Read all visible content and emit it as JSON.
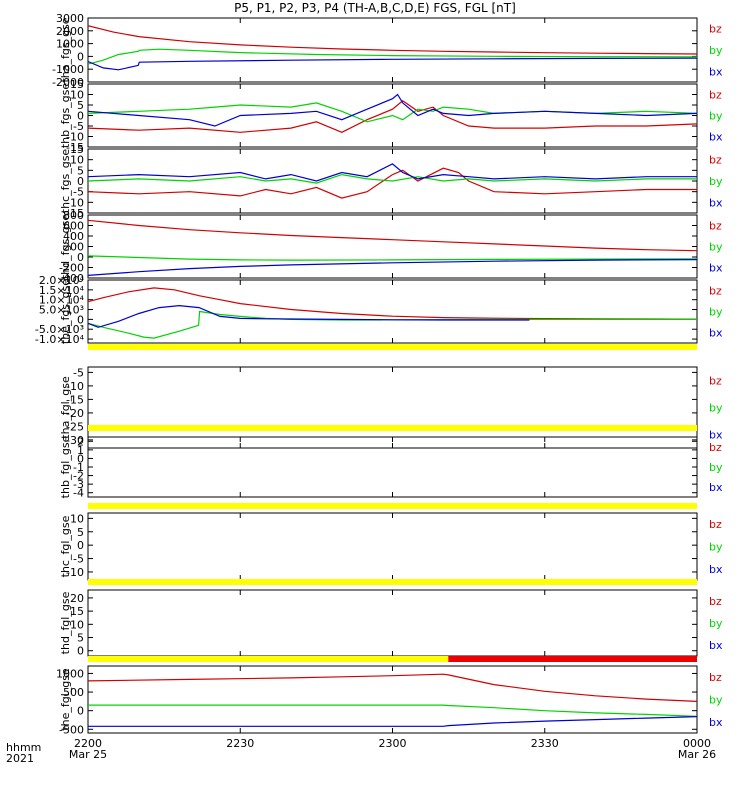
{
  "title": "P5, P1, P2, P3, P4 (TH-A,B,C,D,E) FGS, FGL [nT]",
  "time_axis": {
    "ticks": [
      {
        "label": "2200",
        "sublabel": "Mar 25",
        "minute": 0
      },
      {
        "label": "2230",
        "sublabel": "",
        "minute": 30
      },
      {
        "label": "2300",
        "sublabel": "",
        "minute": 60
      },
      {
        "label": "2330",
        "sublabel": "",
        "minute": 90
      },
      {
        "label": "0000",
        "sublabel": "Mar 26",
        "minute": 120
      }
    ],
    "left_label_1": "hhmm",
    "left_label_2": "2021"
  },
  "colors": {
    "bz": "#d40000",
    "by": "#00d400",
    "bx": "#0000d4",
    "flag_yellow": "#ffff00",
    "flag_red": "#ee0000"
  },
  "chart_data": [
    {
      "type": "line",
      "ylabel": "tha_fgs_gse",
      "ylim": [
        -2000,
        3000
      ],
      "yticks": [
        {
          "v": 3000,
          "label": "3000"
        },
        {
          "v": 2000,
          "label": "2000"
        },
        {
          "v": 1000,
          "label": "1000"
        },
        {
          "v": 0,
          "label": "0"
        },
        {
          "v": -1000,
          "label": "-1000"
        },
        {
          "v": -2000,
          "label": "-2000"
        }
      ],
      "legend": [
        "bz",
        "by",
        "bx"
      ],
      "series": [
        {
          "name": "bz",
          "x": [
            0,
            5,
            10,
            20,
            30,
            40,
            50,
            60,
            70,
            80,
            90,
            100,
            110,
            120
          ],
          "y": [
            2400,
            1900,
            1550,
            1150,
            900,
            720,
            580,
            480,
            400,
            340,
            290,
            250,
            220,
            190
          ]
        },
        {
          "name": "by",
          "x": [
            0,
            3,
            6,
            9.9,
            10.1,
            14,
            20,
            30,
            45,
            60,
            80,
            100,
            120
          ],
          "y": [
            -600,
            -300,
            150,
            400,
            480,
            560,
            480,
            300,
            150,
            60,
            10,
            -20,
            -40
          ]
        },
        {
          "name": "bx",
          "x": [
            0,
            3,
            6,
            9.9,
            10.1,
            20,
            40,
            60,
            80,
            100,
            120
          ],
          "y": [
            -400,
            -900,
            -1050,
            -700,
            -450,
            -380,
            -300,
            -230,
            -190,
            -160,
            -140
          ]
        }
      ]
    },
    {
      "type": "line",
      "ylabel": "thb_fgs_gse",
      "ylim": [
        -15,
        15
      ],
      "yticks": [
        {
          "v": 15,
          "label": "15"
        },
        {
          "v": 10,
          "label": "10"
        },
        {
          "v": 5,
          "label": "5"
        },
        {
          "v": 0,
          "label": "0"
        },
        {
          "v": -5,
          "label": "-5"
        },
        {
          "v": -10,
          "label": "-10"
        },
        {
          "v": -15,
          "label": "-15"
        }
      ],
      "legend": [
        "bz",
        "by",
        "bx"
      ],
      "series": [
        {
          "name": "bz",
          "x": [
            0,
            10,
            20,
            30,
            40,
            45,
            50,
            55,
            60,
            62,
            65,
            68,
            70,
            75,
            80,
            90,
            100,
            110,
            120
          ],
          "y": [
            -6,
            -7,
            -6,
            -8,
            -6,
            -3,
            -8,
            -2,
            3,
            7,
            2,
            4,
            0,
            -5,
            -6,
            -6,
            -5,
            -5,
            -4
          ]
        },
        {
          "name": "by",
          "x": [
            0,
            10,
            20,
            25,
            30,
            40,
            45,
            50,
            55,
            60,
            62,
            65,
            68,
            70,
            75,
            80,
            90,
            100,
            110,
            120
          ],
          "y": [
            1,
            2,
            3,
            4,
            5,
            4,
            6,
            2,
            -3,
            0,
            -2,
            3,
            2,
            4,
            3,
            1,
            2,
            1,
            2,
            1
          ]
        },
        {
          "name": "bx",
          "x": [
            0,
            10,
            20,
            25,
            30,
            40,
            45,
            50,
            55,
            60,
            61,
            62,
            65,
            68,
            70,
            75,
            80,
            90,
            100,
            110,
            120
          ],
          "y": [
            2,
            0,
            -2,
            -5,
            0,
            1,
            2,
            -2,
            3,
            8,
            10,
            6,
            0,
            3,
            1,
            0,
            1,
            2,
            1,
            0,
            1
          ]
        }
      ]
    },
    {
      "type": "line",
      "ylabel": "thc_fgs_gse",
      "ylim": [
        -15,
        15
      ],
      "yticks": [
        {
          "v": 15,
          "label": "15"
        },
        {
          "v": 10,
          "label": "10"
        },
        {
          "v": 5,
          "label": "5"
        },
        {
          "v": 0,
          "label": "0"
        },
        {
          "v": -5,
          "label": "-5"
        },
        {
          "v": -10,
          "label": "-10"
        },
        {
          "v": -15,
          "label": "-15"
        }
      ],
      "legend": [
        "bz",
        "by",
        "bx"
      ],
      "series": [
        {
          "name": "bz",
          "x": [
            0,
            10,
            20,
            30,
            35,
            40,
            45,
            50,
            55,
            60,
            62,
            65,
            70,
            73,
            75,
            80,
            90,
            100,
            110,
            120
          ],
          "y": [
            -5,
            -6,
            -5,
            -7,
            -4,
            -6,
            -3,
            -8,
            -5,
            3,
            5,
            0,
            6,
            4,
            0,
            -5,
            -6,
            -5,
            -4,
            -4
          ]
        },
        {
          "name": "by",
          "x": [
            0,
            10,
            20,
            30,
            35,
            40,
            45,
            50,
            55,
            60,
            65,
            70,
            75,
            80,
            90,
            100,
            110,
            120
          ],
          "y": [
            0,
            1,
            0,
            2,
            0,
            1,
            -1,
            3,
            1,
            0,
            2,
            0,
            1,
            0,
            1,
            0,
            1,
            1
          ]
        },
        {
          "name": "bx",
          "x": [
            0,
            10,
            20,
            30,
            35,
            40,
            45,
            50,
            55,
            60,
            62,
            65,
            70,
            75,
            80,
            90,
            100,
            110,
            120
          ],
          "y": [
            2,
            3,
            2,
            4,
            1,
            3,
            0,
            4,
            2,
            8,
            4,
            1,
            3,
            2,
            1,
            2,
            1,
            2,
            2
          ]
        }
      ]
    },
    {
      "type": "line",
      "ylabel": "thd_fgs_gse",
      "ylim": [
        -400,
        800
      ],
      "yticks": [
        {
          "v": 800,
          "label": "800"
        },
        {
          "v": 600,
          "label": "600"
        },
        {
          "v": 400,
          "label": "400"
        },
        {
          "v": 200,
          "label": "200"
        },
        {
          "v": 0,
          "label": "0"
        },
        {
          "v": -200,
          "label": "-200"
        },
        {
          "v": -400,
          "label": "-400"
        }
      ],
      "legend": [
        "bz",
        "by",
        "bx"
      ],
      "series": [
        {
          "name": "bz",
          "x": [
            0,
            10,
            20,
            30,
            40,
            50,
            60,
            70,
            80,
            90,
            100,
            110,
            120
          ],
          "y": [
            700,
            600,
            520,
            460,
            410,
            370,
            330,
            290,
            250,
            210,
            170,
            140,
            120
          ]
        },
        {
          "name": "by",
          "x": [
            0,
            10,
            20,
            30,
            40,
            60,
            80,
            100,
            120
          ],
          "y": [
            20,
            -10,
            -40,
            -55,
            -60,
            -55,
            -45,
            -40,
            -35
          ]
        },
        {
          "name": "bx",
          "x": [
            0,
            10,
            20,
            30,
            40,
            60,
            80,
            100,
            120
          ],
          "y": [
            -350,
            -280,
            -220,
            -180,
            -150,
            -110,
            -80,
            -60,
            -50
          ]
        }
      ]
    },
    {
      "type": "line",
      "ylabel": "the_fgs_gse",
      "ylim": [
        -12000,
        20000
      ],
      "yticks": [
        {
          "v": 20000,
          "label": "2.0×10⁴"
        },
        {
          "v": 15000,
          "label": "1.5×10⁴"
        },
        {
          "v": 10000,
          "label": "1.0×10⁴"
        },
        {
          "v": 5000,
          "label": "5.0×10³"
        },
        {
          "v": 0,
          "label": "0"
        },
        {
          "v": -5000,
          "label": "-5.0×10³"
        },
        {
          "v": -10000,
          "label": "-1.0×10⁴"
        }
      ],
      "legend": [
        "bz",
        "by",
        "bx"
      ],
      "series": [
        {
          "name": "bz",
          "x": [
            0,
            3,
            8,
            13,
            17,
            22,
            26,
            30,
            40,
            50,
            60,
            70,
            80,
            90,
            100,
            110,
            120
          ],
          "y": [
            9000,
            11000,
            14000,
            16000,
            15000,
            12000,
            10000,
            8000,
            5000,
            3000,
            1600,
            900,
            600,
            400,
            300,
            200,
            100
          ]
        },
        {
          "name": "by",
          "x": [
            0,
            3,
            8,
            11,
            13,
            18,
            21.8,
            22,
            26,
            30,
            35,
            40,
            50,
            60,
            80,
            100,
            120
          ],
          "y": [
            -2000,
            -4000,
            -7000,
            -9000,
            -9500,
            -6000,
            -3000,
            4000,
            2500,
            1500,
            500,
            0,
            -300,
            -200,
            0,
            0,
            0
          ]
        },
        {
          "name": "bx",
          "x": [
            0,
            2,
            6,
            10,
            14,
            18,
            21.9,
            26,
            30,
            35,
            40,
            50,
            60,
            70,
            80,
            87
          ],
          "y": [
            -2000,
            -4000,
            -1000,
            3000,
            6000,
            7000,
            6000,
            1500,
            500,
            300,
            200,
            0,
            -200,
            -300,
            -300,
            -300
          ]
        }
      ]
    },
    {
      "type": "line",
      "ylabel": "tha_fgl_gse",
      "ylim": [
        -33,
        -3
      ],
      "yticks": [
        {
          "v": -5,
          "label": "-5"
        },
        {
          "v": -10,
          "label": "-10"
        },
        {
          "v": -15,
          "label": "-15"
        },
        {
          "v": -20,
          "label": "-20"
        },
        {
          "v": -25,
          "label": "-25"
        },
        {
          "v": -30,
          "label": "-30"
        }
      ],
      "legend": [
        "bz",
        "by",
        "bx"
      ],
      "series": []
    },
    {
      "type": "line",
      "ylabel": "thb_fgl_gse",
      "ylim": [
        -4.5,
        2.5
      ],
      "yticks": [
        {
          "v": 2,
          "label": "2"
        },
        {
          "v": 1,
          "label": "1"
        },
        {
          "v": 0,
          "label": "0"
        },
        {
          "v": -1,
          "label": "-1"
        },
        {
          "v": -2,
          "label": "-2"
        },
        {
          "v": -3,
          "label": "-3"
        },
        {
          "v": -4,
          "label": "-4"
        }
      ],
      "legend": [
        "bz",
        "by",
        "bx"
      ],
      "series": []
    },
    {
      "type": "line",
      "ylabel": "thc_fgl_gse",
      "ylim": [
        -13,
        12
      ],
      "yticks": [
        {
          "v": 10,
          "label": "10"
        },
        {
          "v": 5,
          "label": "5"
        },
        {
          "v": 0,
          "label": "0"
        },
        {
          "v": -5,
          "label": "-5"
        },
        {
          "v": -10,
          "label": "-10"
        }
      ],
      "legend": [
        "bz",
        "by",
        "bx"
      ],
      "series": []
    },
    {
      "type": "line",
      "ylabel": "thd_fgl_gse",
      "ylim": [
        -2,
        23
      ],
      "yticks": [
        {
          "v": 20,
          "label": "20"
        },
        {
          "v": 15,
          "label": "15"
        },
        {
          "v": 10,
          "label": "10"
        },
        {
          "v": 5,
          "label": "5"
        },
        {
          "v": 0,
          "label": "0"
        }
      ],
      "legend": [
        "bz",
        "by",
        "bx"
      ],
      "series": []
    },
    {
      "type": "line",
      "ylabel": "the_fgl_gse",
      "ylim": [
        -600,
        1200
      ],
      "yticks": [
        {
          "v": 1000,
          "label": "1000"
        },
        {
          "v": 500,
          "label": "500"
        },
        {
          "v": 0,
          "label": "0"
        },
        {
          "v": -500,
          "label": "-500"
        }
      ],
      "legend": [
        "bz",
        "by",
        "bx"
      ],
      "series": [
        {
          "name": "bz",
          "x": [
            0,
            20,
            40,
            50,
            60,
            70,
            71,
            80,
            90,
            100,
            110,
            120
          ],
          "y": [
            800,
            840,
            880,
            910,
            940,
            980,
            960,
            700,
            520,
            400,
            310,
            250
          ]
        },
        {
          "name": "by",
          "x": [
            0,
            40,
            70,
            71,
            80,
            90,
            100,
            110,
            120
          ],
          "y": [
            150,
            150,
            150,
            140,
            80,
            0,
            -60,
            -100,
            -150
          ]
        },
        {
          "name": "bx",
          "x": [
            0,
            40,
            70,
            71,
            80,
            90,
            100,
            110,
            120
          ],
          "y": [
            -420,
            -420,
            -420,
            -400,
            -330,
            -280,
            -240,
            -200,
            -160
          ]
        }
      ]
    }
  ]
}
